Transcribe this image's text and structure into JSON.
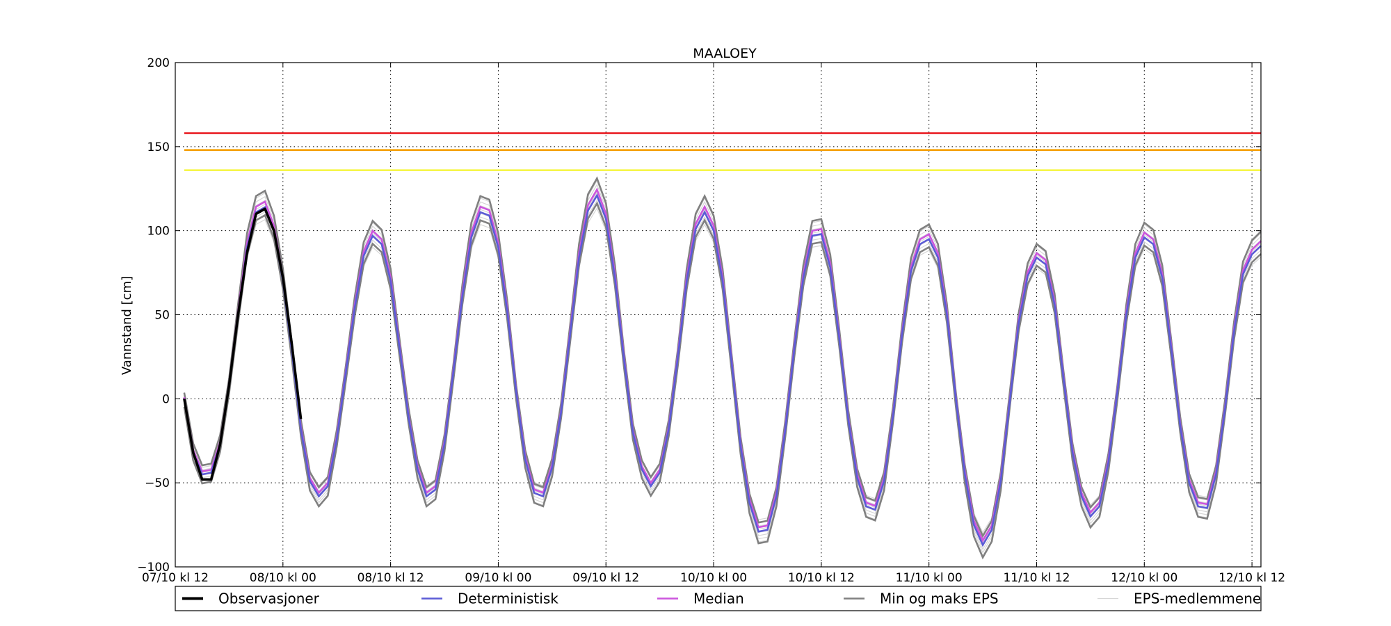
{
  "chart_data": {
    "type": "line",
    "title": "MAALOEY",
    "ylabel": "Vannstand [cm]",
    "xlabel": "",
    "ylim": [
      -100,
      200
    ],
    "xlim": [
      0,
      121
    ],
    "yticks": [
      -100,
      -50,
      0,
      50,
      100,
      150,
      200
    ],
    "yticklabels": [
      "−100",
      "−50",
      "0",
      "50",
      "100",
      "150",
      "200"
    ],
    "xticks": [
      {
        "x": 0,
        "label": "07/10 kl 12"
      },
      {
        "x": 12,
        "label": "08/10 kl 00"
      },
      {
        "x": 24,
        "label": "08/10 kl 12"
      },
      {
        "x": 36,
        "label": "09/10 kl 00"
      },
      {
        "x": 48,
        "label": "09/10 kl 12"
      },
      {
        "x": 60,
        "label": "10/10 kl 00"
      },
      {
        "x": 72,
        "label": "10/10 kl 12"
      },
      {
        "x": 84,
        "label": "11/10 kl 00"
      },
      {
        "x": 96,
        "label": "11/10 kl 12"
      },
      {
        "x": 108,
        "label": "12/10 kl 00"
      },
      {
        "x": 120,
        "label": "12/10 kl 12"
      }
    ],
    "grid": true,
    "legend_position": "bottom",
    "thresholds": [
      {
        "value": 158,
        "color": "#e8141a"
      },
      {
        "value": 148,
        "color": "#f5a000"
      },
      {
        "value": 136,
        "color": "#f6f64a"
      }
    ],
    "x_time": "hours after 07/10 kl 12",
    "deterministic": [
      {
        "x": 1,
        "y": 0
      },
      {
        "x": 2,
        "y": -32
      },
      {
        "x": 3,
        "y": -45
      },
      {
        "x": 4,
        "y": -44
      },
      {
        "x": 5,
        "y": -27
      },
      {
        "x": 6,
        "y": 8
      },
      {
        "x": 7,
        "y": 50
      },
      {
        "x": 8,
        "y": 90
      },
      {
        "x": 9,
        "y": 111
      },
      {
        "x": 10,
        "y": 114
      },
      {
        "x": 11,
        "y": 100
      },
      {
        "x": 12,
        "y": 70
      },
      {
        "x": 13,
        "y": 28
      },
      {
        "x": 14,
        "y": -18
      },
      {
        "x": 15,
        "y": -49
      },
      {
        "x": 16,
        "y": -58
      },
      {
        "x": 17,
        "y": -52
      },
      {
        "x": 18,
        "y": -24
      },
      {
        "x": 19,
        "y": 15
      },
      {
        "x": 20,
        "y": 54
      },
      {
        "x": 21,
        "y": 85
      },
      {
        "x": 22,
        "y": 97
      },
      {
        "x": 23,
        "y": 92
      },
      {
        "x": 24,
        "y": 70
      },
      {
        "x": 25,
        "y": 30
      },
      {
        "x": 26,
        "y": -11
      },
      {
        "x": 27,
        "y": -42
      },
      {
        "x": 28,
        "y": -58
      },
      {
        "x": 29,
        "y": -54
      },
      {
        "x": 30,
        "y": -27
      },
      {
        "x": 31,
        "y": 16
      },
      {
        "x": 32,
        "y": 61
      },
      {
        "x": 33,
        "y": 96
      },
      {
        "x": 34,
        "y": 111
      },
      {
        "x": 35,
        "y": 109
      },
      {
        "x": 36,
        "y": 90
      },
      {
        "x": 37,
        "y": 52
      },
      {
        "x": 38,
        "y": 4
      },
      {
        "x": 39,
        "y": -36
      },
      {
        "x": 40,
        "y": -56
      },
      {
        "x": 41,
        "y": -58
      },
      {
        "x": 42,
        "y": -41
      },
      {
        "x": 43,
        "y": -8
      },
      {
        "x": 44,
        "y": 38
      },
      {
        "x": 45,
        "y": 84
      },
      {
        "x": 46,
        "y": 112
      },
      {
        "x": 47,
        "y": 121
      },
      {
        "x": 48,
        "y": 107
      },
      {
        "x": 49,
        "y": 72
      },
      {
        "x": 50,
        "y": 24
      },
      {
        "x": 51,
        "y": -20
      },
      {
        "x": 52,
        "y": -42
      },
      {
        "x": 53,
        "y": -52
      },
      {
        "x": 54,
        "y": -44
      },
      {
        "x": 55,
        "y": -18
      },
      {
        "x": 56,
        "y": 24
      },
      {
        "x": 57,
        "y": 70
      },
      {
        "x": 58,
        "y": 101
      },
      {
        "x": 59,
        "y": 111
      },
      {
        "x": 60,
        "y": 100
      },
      {
        "x": 61,
        "y": 70
      },
      {
        "x": 62,
        "y": 22
      },
      {
        "x": 63,
        "y": -28
      },
      {
        "x": 64,
        "y": -62
      },
      {
        "x": 65,
        "y": -79
      },
      {
        "x": 66,
        "y": -78
      },
      {
        "x": 67,
        "y": -58
      },
      {
        "x": 68,
        "y": -18
      },
      {
        "x": 69,
        "y": 30
      },
      {
        "x": 70,
        "y": 72
      },
      {
        "x": 71,
        "y": 97
      },
      {
        "x": 72,
        "y": 98
      },
      {
        "x": 73,
        "y": 78
      },
      {
        "x": 74,
        "y": 36
      },
      {
        "x": 75,
        "y": -12
      },
      {
        "x": 76,
        "y": -47
      },
      {
        "x": 77,
        "y": -64
      },
      {
        "x": 78,
        "y": -66
      },
      {
        "x": 79,
        "y": -49
      },
      {
        "x": 80,
        "y": -10
      },
      {
        "x": 81,
        "y": 38
      },
      {
        "x": 82,
        "y": 76
      },
      {
        "x": 83,
        "y": 92
      },
      {
        "x": 84,
        "y": 95
      },
      {
        "x": 85,
        "y": 84
      },
      {
        "x": 86,
        "y": 50
      },
      {
        "x": 87,
        "y": 0
      },
      {
        "x": 88,
        "y": -45
      },
      {
        "x": 89,
        "y": -75
      },
      {
        "x": 90,
        "y": -87
      },
      {
        "x": 91,
        "y": -78
      },
      {
        "x": 92,
        "y": -49
      },
      {
        "x": 93,
        "y": -2
      },
      {
        "x": 94,
        "y": 45
      },
      {
        "x": 95,
        "y": 73
      },
      {
        "x": 96,
        "y": 84
      },
      {
        "x": 97,
        "y": 80
      },
      {
        "x": 98,
        "y": 56
      },
      {
        "x": 99,
        "y": 12
      },
      {
        "x": 100,
        "y": -32
      },
      {
        "x": 101,
        "y": -58
      },
      {
        "x": 102,
        "y": -70
      },
      {
        "x": 103,
        "y": -64
      },
      {
        "x": 104,
        "y": -38
      },
      {
        "x": 105,
        "y": 4
      },
      {
        "x": 106,
        "y": 50
      },
      {
        "x": 107,
        "y": 84
      },
      {
        "x": 108,
        "y": 96
      },
      {
        "x": 109,
        "y": 92
      },
      {
        "x": 110,
        "y": 72
      },
      {
        "x": 111,
        "y": 30
      },
      {
        "x": 112,
        "y": -16
      },
      {
        "x": 113,
        "y": -50
      },
      {
        "x": 114,
        "y": -64
      },
      {
        "x": 115,
        "y": -65
      },
      {
        "x": 116,
        "y": -45
      },
      {
        "x": 117,
        "y": -6
      },
      {
        "x": 118,
        "y": 40
      },
      {
        "x": 119,
        "y": 74
      },
      {
        "x": 120,
        "y": 86
      },
      {
        "x": 121,
        "y": 91
      }
    ],
    "median_offset": 3,
    "eps_max_offset": 9,
    "eps_min_offset": -8,
    "eps_member_count": 8,
    "series": [
      {
        "name": "Observasjoner",
        "color": "#000000",
        "points": [
          {
            "x": 1,
            "y": 0
          },
          {
            "x": 2,
            "y": -32
          },
          {
            "x": 3,
            "y": -48
          },
          {
            "x": 4,
            "y": -48
          },
          {
            "x": 5,
            "y": -27
          },
          {
            "x": 6,
            "y": 8
          },
          {
            "x": 7,
            "y": 50
          },
          {
            "x": 8,
            "y": 87
          },
          {
            "x": 9,
            "y": 110
          },
          {
            "x": 10,
            "y": 113
          },
          {
            "x": 11,
            "y": 100
          },
          {
            "x": 12,
            "y": 72
          },
          {
            "x": 13,
            "y": 32
          },
          {
            "x": 14,
            "y": -12
          }
        ]
      },
      {
        "name": "Deterministisk",
        "color": "#5b5bd6"
      },
      {
        "name": "Median",
        "color": "#cc55dd"
      },
      {
        "name": "Min og maks EPS",
        "color": "#808080"
      },
      {
        "name": "EPS-medlemmene",
        "color": "#d6d6d6"
      }
    ]
  }
}
